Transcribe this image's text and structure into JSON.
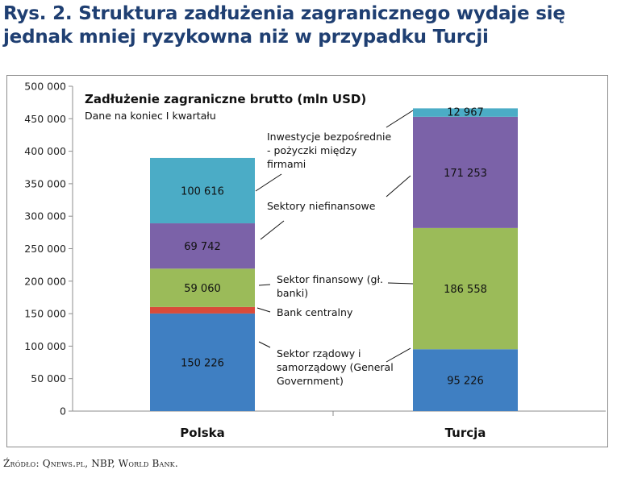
{
  "figure": {
    "title": "Rys. 2. Struktura zadłużenia zagranicznego wydaje się jednak mniej ryzykowna niż w przypadku Turcji",
    "source": "Źródło: Qnews.pl, NBP, World Bank."
  },
  "chart_data": {
    "type": "bar",
    "stacked": true,
    "title": "Zadłużenie zagraniczne brutto (mln USD)",
    "subtitle": "Dane na koniec I kwartału",
    "categories": [
      "Polska",
      "Turcja"
    ],
    "ylim": [
      0,
      500000
    ],
    "y_ticks": [
      0,
      50000,
      100000,
      150000,
      200000,
      250000,
      300000,
      350000,
      400000,
      450000,
      500000
    ],
    "y_tick_labels": [
      "0",
      "50 000",
      "100 000",
      "150 000",
      "200 000",
      "250 000",
      "300 000",
      "350 000",
      "400 000",
      "450 000",
      "500 000"
    ],
    "grid": false,
    "legend": "inline-annotations",
    "series": [
      {
        "name": "Sektor rządowy i samorządowy (General Government)",
        "color": "#3f7fc2",
        "values": [
          150226,
          95226
        ],
        "labels": [
          "150 226",
          "95 226"
        ]
      },
      {
        "name": "Bank centralny",
        "color": "#d94b3a",
        "values": [
          10000,
          0
        ],
        "labels": [
          "",
          ""
        ]
      },
      {
        "name": "Sektor finansowy (gł. banki)",
        "color": "#9bbb59",
        "values": [
          59060,
          186558
        ],
        "labels": [
          "59 060",
          "186 558"
        ]
      },
      {
        "name": "Sektory niefinansowe",
        "color": "#7b62a8",
        "values": [
          69742,
          171253
        ],
        "labels": [
          "69 742",
          "171 253"
        ]
      },
      {
        "name": "Inwestycje bezpośrednie - pożyczki między firmami",
        "color": "#4bacc6",
        "values": [
          100616,
          12967
        ],
        "labels": [
          "100 616",
          "12 967"
        ]
      }
    ],
    "annotations": [
      {
        "series": 4,
        "lines": [
          "Inwestycje bezpośrednie",
          "- pożyczki między",
          "firmami"
        ]
      },
      {
        "series": 3,
        "lines": [
          "Sektory niefinansowe"
        ]
      },
      {
        "series": 2,
        "lines": [
          "Sektor finansowy (gł.",
          "banki)"
        ]
      },
      {
        "series": 1,
        "lines": [
          "Bank centralny"
        ]
      },
      {
        "series": 0,
        "lines": [
          "Sektor rządowy i",
          "samorządowy (General",
          "Government)"
        ]
      }
    ]
  }
}
